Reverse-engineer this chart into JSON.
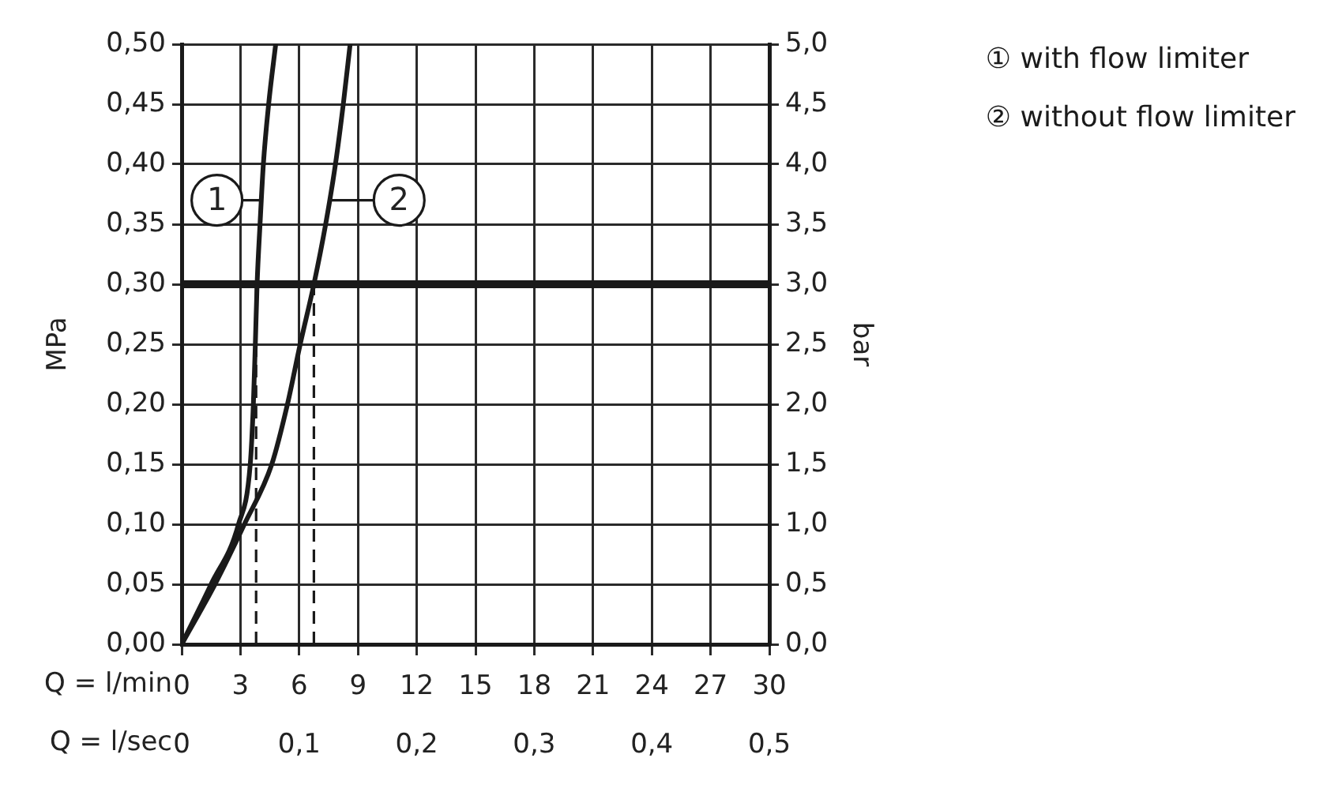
{
  "chart_data": {
    "type": "line",
    "xlabel": "Q = l/min",
    "x2label": "Q = l/sec",
    "ylabel": "MPa",
    "y2label": "bar",
    "xlim": [
      0,
      30
    ],
    "xticks": [
      0,
      3,
      6,
      9,
      12,
      15,
      18,
      21,
      24,
      27,
      30
    ],
    "x2lim": [
      0,
      0.5
    ],
    "x2ticks": [
      0,
      {
        "value": 0.1,
        "label": "0,1"
      },
      {
        "value": 0.2,
        "label": "0,2"
      },
      {
        "value": 0.3,
        "label": "0,3"
      },
      {
        "value": 0.4,
        "label": "0,4"
      },
      {
        "value": 0.5,
        "label": "0,5"
      }
    ],
    "ylim": [
      0,
      0.5
    ],
    "yticks": [
      {
        "value": 0,
        "label": "0,00"
      },
      {
        "value": 0.05,
        "label": "0,05"
      },
      {
        "value": 0.1,
        "label": "0,10"
      },
      {
        "value": 0.15,
        "label": "0,15"
      },
      {
        "value": 0.2,
        "label": "0,20"
      },
      {
        "value": 0.25,
        "label": "0,25"
      },
      {
        "value": 0.3,
        "label": "0,30"
      },
      {
        "value": 0.35,
        "label": "0,35"
      },
      {
        "value": 0.4,
        "label": "0,40"
      },
      {
        "value": 0.45,
        "label": "0,45"
      },
      {
        "value": 0.5,
        "label": "0,50"
      }
    ],
    "y2lim": [
      0,
      5
    ],
    "y2ticks": [
      {
        "value": 0,
        "label": "0,0"
      },
      {
        "value": 0.5,
        "label": "0,5"
      },
      {
        "value": 1,
        "label": "1,0"
      },
      {
        "value": 1.5,
        "label": "1,5"
      },
      {
        "value": 2,
        "label": "2,0"
      },
      {
        "value": 2.5,
        "label": "2,5"
      },
      {
        "value": 3,
        "label": "3,0"
      },
      {
        "value": 3.5,
        "label": "3,5"
      },
      {
        "value": 4,
        "label": "4,0"
      },
      {
        "value": 4.5,
        "label": "4,5"
      },
      {
        "value": 5,
        "label": "5,0"
      }
    ],
    "series": [
      {
        "name": "① with flow limiter",
        "color": "#1a1a1a",
        "x": [
          0,
          1.5,
          2.9,
          3.5,
          3.66,
          3.76,
          3.85,
          4.0,
          4.17,
          4.44,
          4.8
        ],
        "values": [
          0,
          0.05,
          0.1,
          0.15,
          0.2,
          0.25,
          0.3,
          0.35,
          0.4,
          0.45,
          0.5
        ]
      },
      {
        "name": "② without flow limiter",
        "color": "#1a1a1a",
        "x": [
          0,
          1.7,
          3.2,
          4.6,
          5.4,
          6.05,
          6.75,
          7.35,
          7.85,
          8.25,
          8.6
        ],
        "values": [
          0,
          0.05,
          0.1,
          0.15,
          0.2,
          0.25,
          0.3,
          0.35,
          0.4,
          0.45,
          0.5
        ]
      }
    ],
    "ref_lines": [
      {
        "axis": "y",
        "value": 0.3,
        "color": "#1a1a1a",
        "line_style": "solid"
      },
      {
        "axis": "x",
        "value": 3.8,
        "color": "#1a1a1a",
        "line_style": "dashed"
      },
      {
        "axis": "x",
        "value": 6.75,
        "color": "#1a1a1a",
        "line_style": "dashed"
      }
    ],
    "annotations": [
      {
        "text": "1",
        "x": 1.8,
        "y": 0.37
      },
      {
        "text": "2",
        "x": 11.1,
        "y": 0.37
      }
    ],
    "grid": true,
    "legend": "top right",
    "marker": "none",
    "line_style": "solid"
  }
}
